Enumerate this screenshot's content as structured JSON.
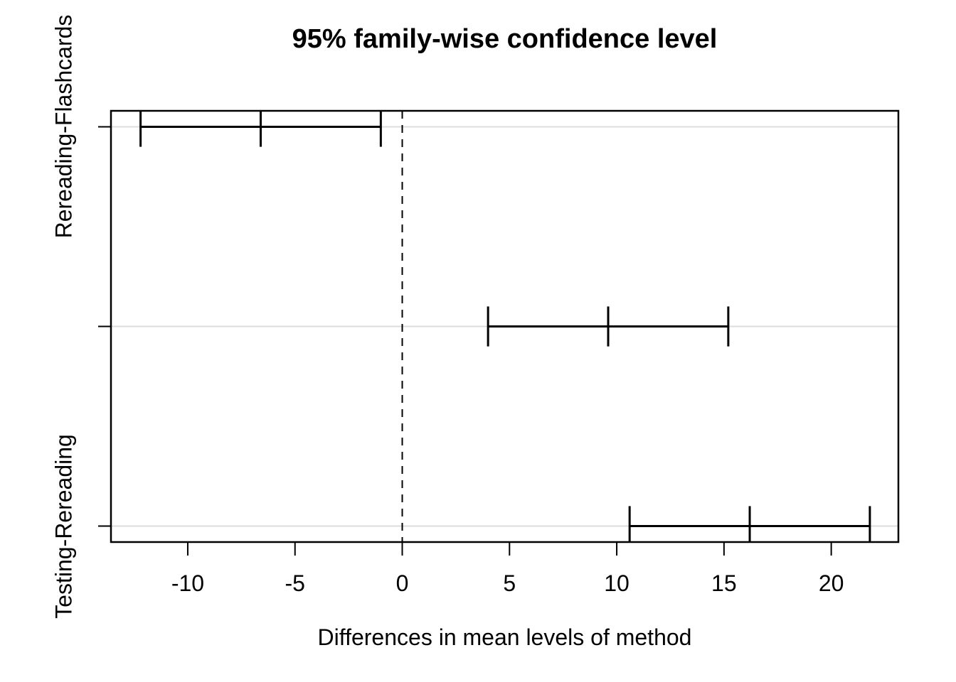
{
  "chart_data": {
    "type": "interval",
    "title": "95% family-wise confidence level",
    "xlabel": "Differences in mean levels of method",
    "ylabel": "",
    "xlim": [
      -13.58,
      23.13
    ],
    "ylim": [
      0.92,
      3.08
    ],
    "x_ticks": [
      "-10",
      "-5",
      "0",
      "5",
      "10",
      "15",
      "20"
    ],
    "x_tick_values": [
      -10,
      -5,
      0,
      5,
      10,
      15,
      20
    ],
    "grid": "light-gray horizontal reference line at each comparison",
    "legend": "none",
    "zero_line": {
      "x": 0,
      "style": "dashed",
      "color": "#000000"
    },
    "comparisons": [
      {
        "label": "Rereading-Flashcards",
        "label_shown": true,
        "y": 3,
        "lower": -12.2,
        "center": -6.6,
        "upper": -1.0
      },
      {
        "label": "",
        "label_shown": false,
        "y": 2,
        "lower": 4.0,
        "center": 9.6,
        "upper": 15.2
      },
      {
        "label": "Testing-Rereading",
        "label_shown": true,
        "y": 1,
        "lower": 10.6,
        "center": 16.2,
        "upper": 21.8
      }
    ]
  },
  "colors": {
    "background": "#ffffff",
    "foreground": "#000000",
    "reference_line": "#dcdcdc"
  }
}
